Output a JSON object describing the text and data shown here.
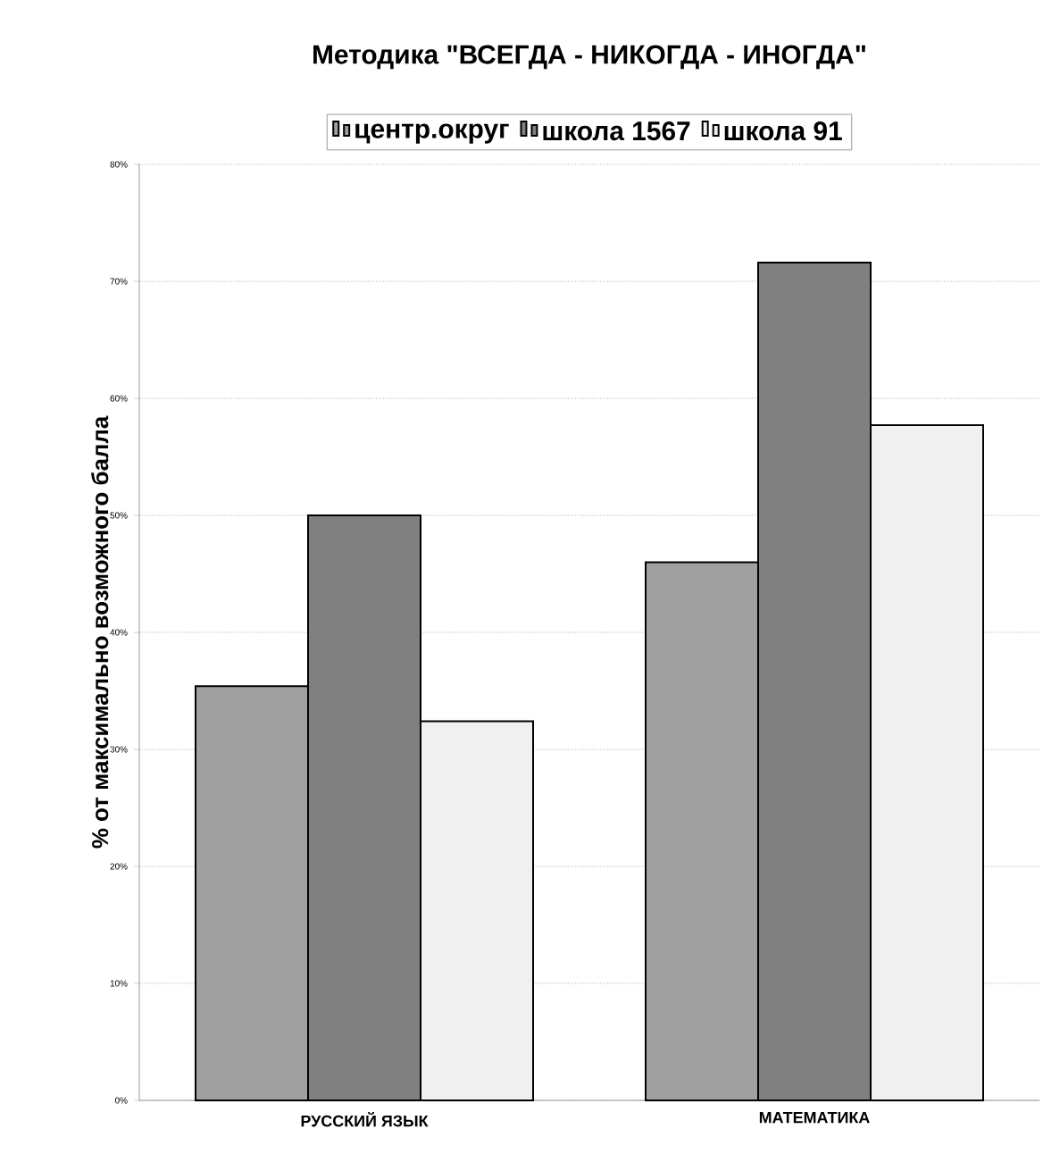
{
  "chart_data": {
    "type": "bar",
    "title": "Методика \"ВСЕГДА - НИКОГДА - ИНОГДА\"",
    "ylabel": "% от максимально  возможного балла",
    "categories": [
      "РУССКИЙ ЯЗЫК",
      "МАТЕМАТИКА"
    ],
    "series": [
      {
        "name": "центр.округ",
        "color": "#a0a0a0",
        "values": [
          35.4,
          46
        ]
      },
      {
        "name": "школа 1567",
        "color": "#808080",
        "values": [
          50,
          71.6
        ]
      },
      {
        "name": "школа 91",
        "color": "#f0f0f0",
        "values": [
          32.4,
          57.7
        ]
      }
    ],
    "ylim": [
      0,
      80
    ],
    "yticks": [
      {
        "value": 0,
        "label": "0%"
      },
      {
        "value": 10,
        "label": "10%"
      },
      {
        "value": 20,
        "label": "20%"
      },
      {
        "value": 30,
        "label": "30%"
      },
      {
        "value": 40,
        "label": "40%"
      },
      {
        "value": 50,
        "label": "50%"
      },
      {
        "value": 60,
        "label": "60%"
      },
      {
        "value": 70,
        "label": "70%"
      },
      {
        "value": 80,
        "label": "80%"
      }
    ],
    "grid": "y",
    "legend": "top"
  }
}
